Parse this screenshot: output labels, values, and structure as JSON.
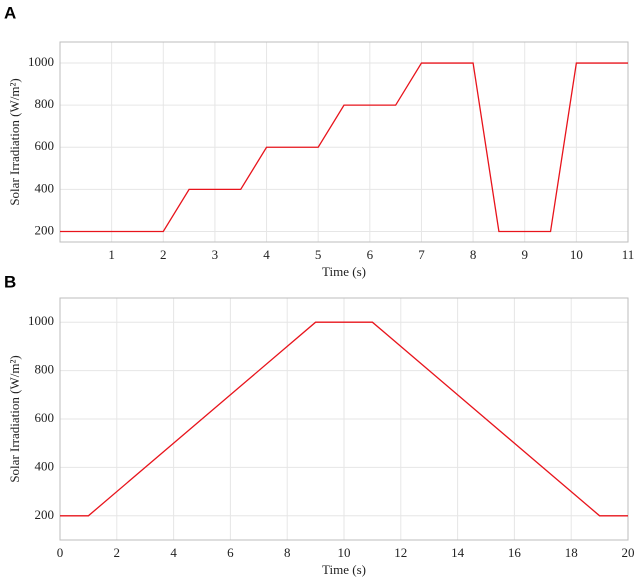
{
  "chart_data": [
    {
      "type": "line",
      "label": "A",
      "x_label": "Time (s)",
      "y_label": "Solar Irradiation (W/m²)",
      "x": [
        0,
        2,
        2.5,
        3.5,
        4,
        5,
        5.5,
        6.5,
        7,
        8,
        8.5,
        9.5,
        10,
        11
      ],
      "series": [
        {
          "color": "#e8141c",
          "values": [
            200,
            200,
            400,
            400,
            600,
            600,
            800,
            800,
            1000,
            1000,
            200,
            200,
            1000,
            1000
          ]
        }
      ],
      "xlim": [
        0,
        11
      ],
      "xticks": [
        1,
        2,
        3,
        4,
        5,
        6,
        7,
        8,
        9,
        10,
        11
      ],
      "ylim": [
        150,
        1100
      ],
      "yticks": [
        200,
        400,
        600,
        800,
        1000
      ],
      "grid": true
    },
    {
      "type": "line",
      "label": "B",
      "x_label": "Time (s)",
      "y_label": "Solar Irradiation (W/m²)",
      "x": [
        0,
        1,
        9,
        11,
        19,
        20
      ],
      "series": [
        {
          "color": "#e8141c",
          "values": [
            200,
            200,
            1000,
            1000,
            200,
            200
          ]
        }
      ],
      "xlim": [
        0,
        20
      ],
      "xticks": [
        0,
        2,
        4,
        6,
        8,
        10,
        12,
        14,
        16,
        18,
        20
      ],
      "ylim": [
        100,
        1100
      ],
      "yticks": [
        200,
        400,
        600,
        800,
        1000
      ],
      "grid": true
    }
  ]
}
